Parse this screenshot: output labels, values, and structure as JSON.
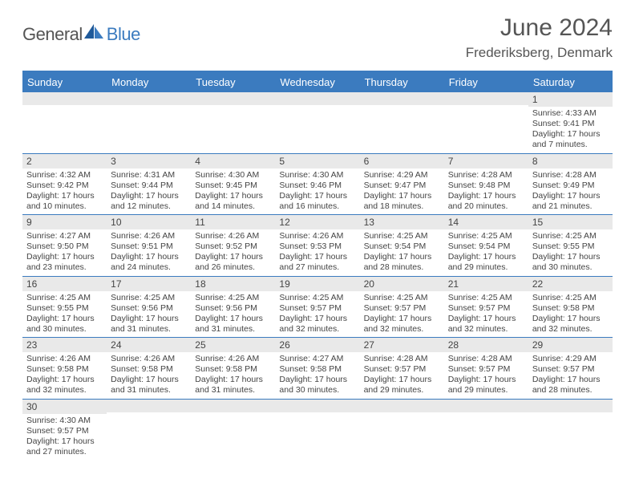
{
  "logo": {
    "text1": "General",
    "text2": "Blue"
  },
  "title": "June 2024",
  "location": "Frederiksberg, Denmark",
  "colors": {
    "header_bg": "#3b7bbf",
    "header_text": "#ffffff",
    "daynum_bg": "#e9e9e9",
    "border": "#3b7bbf",
    "text": "#444444"
  },
  "dayHeaders": [
    "Sunday",
    "Monday",
    "Tuesday",
    "Wednesday",
    "Thursday",
    "Friday",
    "Saturday"
  ],
  "weeks": [
    [
      null,
      null,
      null,
      null,
      null,
      null,
      {
        "n": "1",
        "sr": "Sunrise: 4:33 AM",
        "ss": "Sunset: 9:41 PM",
        "dl": "Daylight: 17 hours and 7 minutes."
      }
    ],
    [
      {
        "n": "2",
        "sr": "Sunrise: 4:32 AM",
        "ss": "Sunset: 9:42 PM",
        "dl": "Daylight: 17 hours and 10 minutes."
      },
      {
        "n": "3",
        "sr": "Sunrise: 4:31 AM",
        "ss": "Sunset: 9:44 PM",
        "dl": "Daylight: 17 hours and 12 minutes."
      },
      {
        "n": "4",
        "sr": "Sunrise: 4:30 AM",
        "ss": "Sunset: 9:45 PM",
        "dl": "Daylight: 17 hours and 14 minutes."
      },
      {
        "n": "5",
        "sr": "Sunrise: 4:30 AM",
        "ss": "Sunset: 9:46 PM",
        "dl": "Daylight: 17 hours and 16 minutes."
      },
      {
        "n": "6",
        "sr": "Sunrise: 4:29 AM",
        "ss": "Sunset: 9:47 PM",
        "dl": "Daylight: 17 hours and 18 minutes."
      },
      {
        "n": "7",
        "sr": "Sunrise: 4:28 AM",
        "ss": "Sunset: 9:48 PM",
        "dl": "Daylight: 17 hours and 20 minutes."
      },
      {
        "n": "8",
        "sr": "Sunrise: 4:28 AM",
        "ss": "Sunset: 9:49 PM",
        "dl": "Daylight: 17 hours and 21 minutes."
      }
    ],
    [
      {
        "n": "9",
        "sr": "Sunrise: 4:27 AM",
        "ss": "Sunset: 9:50 PM",
        "dl": "Daylight: 17 hours and 23 minutes."
      },
      {
        "n": "10",
        "sr": "Sunrise: 4:26 AM",
        "ss": "Sunset: 9:51 PM",
        "dl": "Daylight: 17 hours and 24 minutes."
      },
      {
        "n": "11",
        "sr": "Sunrise: 4:26 AM",
        "ss": "Sunset: 9:52 PM",
        "dl": "Daylight: 17 hours and 26 minutes."
      },
      {
        "n": "12",
        "sr": "Sunrise: 4:26 AM",
        "ss": "Sunset: 9:53 PM",
        "dl": "Daylight: 17 hours and 27 minutes."
      },
      {
        "n": "13",
        "sr": "Sunrise: 4:25 AM",
        "ss": "Sunset: 9:54 PM",
        "dl": "Daylight: 17 hours and 28 minutes."
      },
      {
        "n": "14",
        "sr": "Sunrise: 4:25 AM",
        "ss": "Sunset: 9:54 PM",
        "dl": "Daylight: 17 hours and 29 minutes."
      },
      {
        "n": "15",
        "sr": "Sunrise: 4:25 AM",
        "ss": "Sunset: 9:55 PM",
        "dl": "Daylight: 17 hours and 30 minutes."
      }
    ],
    [
      {
        "n": "16",
        "sr": "Sunrise: 4:25 AM",
        "ss": "Sunset: 9:55 PM",
        "dl": "Daylight: 17 hours and 30 minutes."
      },
      {
        "n": "17",
        "sr": "Sunrise: 4:25 AM",
        "ss": "Sunset: 9:56 PM",
        "dl": "Daylight: 17 hours and 31 minutes."
      },
      {
        "n": "18",
        "sr": "Sunrise: 4:25 AM",
        "ss": "Sunset: 9:56 PM",
        "dl": "Daylight: 17 hours and 31 minutes."
      },
      {
        "n": "19",
        "sr": "Sunrise: 4:25 AM",
        "ss": "Sunset: 9:57 PM",
        "dl": "Daylight: 17 hours and 32 minutes."
      },
      {
        "n": "20",
        "sr": "Sunrise: 4:25 AM",
        "ss": "Sunset: 9:57 PM",
        "dl": "Daylight: 17 hours and 32 minutes."
      },
      {
        "n": "21",
        "sr": "Sunrise: 4:25 AM",
        "ss": "Sunset: 9:57 PM",
        "dl": "Daylight: 17 hours and 32 minutes."
      },
      {
        "n": "22",
        "sr": "Sunrise: 4:25 AM",
        "ss": "Sunset: 9:58 PM",
        "dl": "Daylight: 17 hours and 32 minutes."
      }
    ],
    [
      {
        "n": "23",
        "sr": "Sunrise: 4:26 AM",
        "ss": "Sunset: 9:58 PM",
        "dl": "Daylight: 17 hours and 32 minutes."
      },
      {
        "n": "24",
        "sr": "Sunrise: 4:26 AM",
        "ss": "Sunset: 9:58 PM",
        "dl": "Daylight: 17 hours and 31 minutes."
      },
      {
        "n": "25",
        "sr": "Sunrise: 4:26 AM",
        "ss": "Sunset: 9:58 PM",
        "dl": "Daylight: 17 hours and 31 minutes."
      },
      {
        "n": "26",
        "sr": "Sunrise: 4:27 AM",
        "ss": "Sunset: 9:58 PM",
        "dl": "Daylight: 17 hours and 30 minutes."
      },
      {
        "n": "27",
        "sr": "Sunrise: 4:28 AM",
        "ss": "Sunset: 9:57 PM",
        "dl": "Daylight: 17 hours and 29 minutes."
      },
      {
        "n": "28",
        "sr": "Sunrise: 4:28 AM",
        "ss": "Sunset: 9:57 PM",
        "dl": "Daylight: 17 hours and 29 minutes."
      },
      {
        "n": "29",
        "sr": "Sunrise: 4:29 AM",
        "ss": "Sunset: 9:57 PM",
        "dl": "Daylight: 17 hours and 28 minutes."
      }
    ],
    [
      {
        "n": "30",
        "sr": "Sunrise: 4:30 AM",
        "ss": "Sunset: 9:57 PM",
        "dl": "Daylight: 17 hours and 27 minutes."
      },
      null,
      null,
      null,
      null,
      null,
      null
    ]
  ]
}
